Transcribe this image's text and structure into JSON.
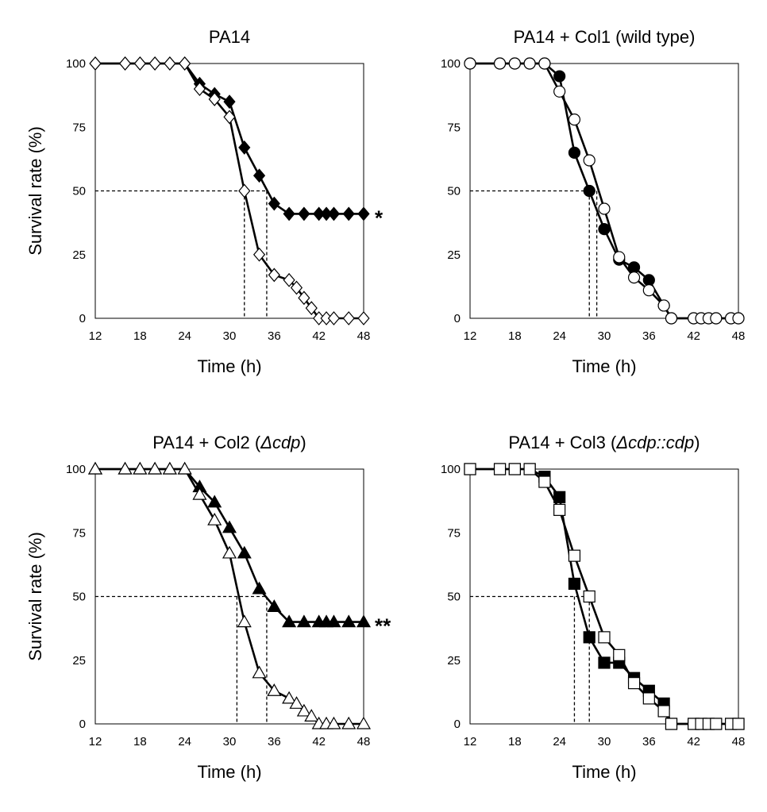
{
  "chart_data": [
    {
      "type": "line",
      "title_parts": [
        {
          "text": "PA14",
          "italic": false
        }
      ],
      "xlabel": "Time (h)",
      "ylabel": "Survival rate (%)",
      "xlim": [
        12,
        48
      ],
      "ylim": [
        0,
        100
      ],
      "xticks": [
        "12",
        "18",
        "24",
        "30",
        "36",
        "42",
        "48"
      ],
      "yticks": [
        "0",
        "25",
        "50",
        "75",
        "100"
      ],
      "marker": "diamond",
      "significance": "*",
      "median_lines": [
        {
          "y": 50,
          "x": 32
        },
        {
          "y": 50,
          "x": 35
        }
      ],
      "series": [
        {
          "fill": "#000000",
          "x": [
            12,
            16,
            18,
            20,
            22,
            24,
            26,
            28,
            30,
            32,
            34,
            36,
            38,
            40,
            42,
            43,
            44,
            46,
            48
          ],
          "y": [
            100,
            100,
            100,
            100,
            100,
            100,
            92,
            88,
            85,
            67,
            56,
            45,
            41,
            41,
            41,
            41,
            41,
            41,
            41
          ]
        },
        {
          "fill": "#ffffff",
          "x": [
            12,
            16,
            18,
            20,
            22,
            24,
            26,
            28,
            30,
            32,
            34,
            36,
            38,
            39,
            40,
            41,
            42,
            43,
            44,
            46,
            48
          ],
          "y": [
            100,
            100,
            100,
            100,
            100,
            100,
            90,
            86,
            79,
            50,
            25,
            17,
            15,
            12,
            8,
            4,
            0,
            0,
            0,
            0,
            0
          ]
        }
      ]
    },
    {
      "type": "line",
      "title_parts": [
        {
          "text": "PA14 + Col1 (wild type)",
          "italic": false
        }
      ],
      "xlabel": "Time (h)",
      "ylabel": "",
      "xlim": [
        12,
        48
      ],
      "ylim": [
        0,
        100
      ],
      "xticks": [
        "12",
        "18",
        "24",
        "30",
        "36",
        "42",
        "48"
      ],
      "yticks": [
        "0",
        "25",
        "50",
        "75",
        "100"
      ],
      "marker": "circle",
      "significance": "",
      "median_lines": [
        {
          "y": 50,
          "x": 28
        },
        {
          "y": 50,
          "x": 29
        }
      ],
      "series": [
        {
          "fill": "#000000",
          "x": [
            12,
            16,
            18,
            20,
            22,
            24,
            26,
            28,
            30,
            32,
            34,
            36,
            38,
            39,
            42,
            43,
            44,
            45,
            47,
            48
          ],
          "y": [
            100,
            100,
            100,
            100,
            100,
            95,
            65,
            50,
            35,
            23,
            20,
            15,
            5,
            0,
            0,
            0,
            0,
            0,
            0,
            0
          ]
        },
        {
          "fill": "#ffffff",
          "x": [
            12,
            16,
            18,
            20,
            22,
            24,
            26,
            28,
            30,
            32,
            34,
            36,
            38,
            39,
            42,
            43,
            44,
            45,
            47,
            48
          ],
          "y": [
            100,
            100,
            100,
            100,
            100,
            89,
            78,
            62,
            43,
            24,
            16,
            11,
            5,
            0,
            0,
            0,
            0,
            0,
            0,
            0
          ]
        }
      ]
    },
    {
      "type": "line",
      "title_parts": [
        {
          "text": "PA14 + Col2 (",
          "italic": false
        },
        {
          "text": "Δcdp",
          "italic": true
        },
        {
          "text": ")",
          "italic": false
        }
      ],
      "xlabel": "Time (h)",
      "ylabel": "Survival rate (%)",
      "xlim": [
        12,
        48
      ],
      "ylim": [
        0,
        100
      ],
      "xticks": [
        "12",
        "18",
        "24",
        "30",
        "36",
        "42",
        "48"
      ],
      "yticks": [
        "0",
        "25",
        "50",
        "75",
        "100"
      ],
      "marker": "triangle",
      "significance": "**",
      "median_lines": [
        {
          "y": 50,
          "x": 31
        },
        {
          "y": 50,
          "x": 35
        }
      ],
      "series": [
        {
          "fill": "#000000",
          "x": [
            12,
            16,
            18,
            20,
            22,
            24,
            26,
            28,
            30,
            32,
            34,
            36,
            38,
            40,
            42,
            43,
            44,
            46,
            48
          ],
          "y": [
            100,
            100,
            100,
            100,
            100,
            100,
            93,
            87,
            77,
            67,
            53,
            46,
            40,
            40,
            40,
            40,
            40,
            40,
            40
          ]
        },
        {
          "fill": "#ffffff",
          "x": [
            12,
            16,
            18,
            20,
            22,
            24,
            26,
            28,
            30,
            32,
            34,
            36,
            38,
            39,
            40,
            41,
            42,
            43,
            44,
            46,
            48
          ],
          "y": [
            100,
            100,
            100,
            100,
            100,
            100,
            90,
            80,
            67,
            40,
            20,
            13,
            10,
            8,
            5,
            3,
            0,
            0,
            0,
            0,
            0
          ]
        }
      ]
    },
    {
      "type": "line",
      "title_parts": [
        {
          "text": "PA14 + Col3 (",
          "italic": false
        },
        {
          "text": "Δcdp::cdp",
          "italic": true
        },
        {
          "text": ")",
          "italic": false
        }
      ],
      "xlabel": "Time (h)",
      "ylabel": "",
      "xlim": [
        12,
        48
      ],
      "ylim": [
        0,
        100
      ],
      "xticks": [
        "12",
        "18",
        "24",
        "30",
        "36",
        "42",
        "48"
      ],
      "yticks": [
        "0",
        "25",
        "50",
        "75",
        "100"
      ],
      "marker": "square",
      "significance": "",
      "median_lines": [
        {
          "y": 50,
          "x": 26
        },
        {
          "y": 50,
          "x": 28
        }
      ],
      "series": [
        {
          "fill": "#000000",
          "x": [
            12,
            16,
            18,
            20,
            22,
            24,
            26,
            28,
            30,
            32,
            34,
            36,
            38,
            39,
            42,
            43,
            44,
            45,
            47,
            48
          ],
          "y": [
            100,
            100,
            100,
            100,
            97,
            89,
            55,
            34,
            24,
            24,
            18,
            13,
            8,
            0,
            0,
            0,
            0,
            0,
            0,
            0
          ]
        },
        {
          "fill": "#ffffff",
          "x": [
            12,
            16,
            18,
            20,
            22,
            24,
            26,
            28,
            30,
            32,
            34,
            36,
            38,
            39,
            42,
            43,
            44,
            45,
            47,
            48
          ],
          "y": [
            100,
            100,
            100,
            100,
            95,
            84,
            66,
            50,
            34,
            27,
            16,
            10,
            5,
            0,
            0,
            0,
            0,
            0,
            0,
            0
          ]
        }
      ]
    }
  ]
}
